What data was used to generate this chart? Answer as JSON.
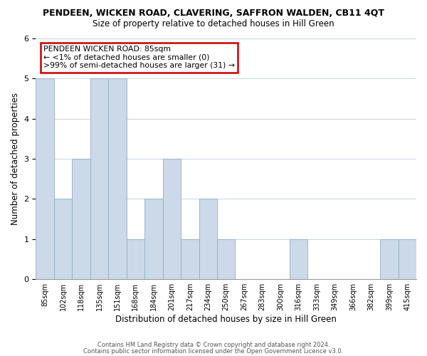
{
  "title": "PENDEEN, WICKEN ROAD, CLAVERING, SAFFRON WALDEN, CB11 4QT",
  "subtitle": "Size of property relative to detached houses in Hill Green",
  "xlabel": "Distribution of detached houses by size in Hill Green",
  "ylabel": "Number of detached properties",
  "bar_color": "#ccd9e8",
  "bar_edge_color": "#8faec8",
  "bins": [
    "85sqm",
    "102sqm",
    "118sqm",
    "135sqm",
    "151sqm",
    "168sqm",
    "184sqm",
    "201sqm",
    "217sqm",
    "234sqm",
    "250sqm",
    "267sqm",
    "283sqm",
    "300sqm",
    "316sqm",
    "333sqm",
    "349sqm",
    "366sqm",
    "382sqm",
    "399sqm",
    "415sqm"
  ],
  "bar_heights": [
    5,
    2,
    3,
    5,
    5,
    1,
    2,
    3,
    1,
    2,
    1,
    0,
    0,
    0,
    1,
    0,
    0,
    0,
    0,
    1,
    1
  ],
  "annotation_box_text": "PENDEEN WICKEN ROAD: 85sqm\n← <1% of detached houses are smaller (0)\n>99% of semi-detached houses are larger (31) →",
  "annotation_box_color": "#ffffff",
  "annotation_box_edge_color": "#cc0000",
  "ylim": [
    0,
    6
  ],
  "yticks": [
    0,
    1,
    2,
    3,
    4,
    5,
    6
  ],
  "footnote1": "Contains HM Land Registry data © Crown copyright and database right 2024.",
  "footnote2": "Contains public sector information licensed under the Open Government Licence v3.0.",
  "background_color": "#ffffff",
  "grid_color": "#c8d4de"
}
